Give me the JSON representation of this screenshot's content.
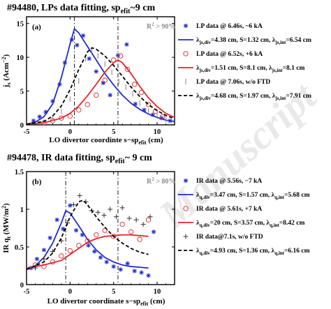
{
  "watermark": "Manuscript",
  "colors": {
    "blue": "#1f2ccc",
    "red": "#e0262a",
    "black": "#000000",
    "grey": "#8c8c8c"
  },
  "chart_data": [
    {
      "id": "a",
      "type": "scatter",
      "title": "#94480,  LPs data fitting, sp",
      "title_sub": "efit",
      "title_tail": "~9 cm",
      "panel_label": "(a)",
      "annotation": "R",
      "annotation_sup": "2",
      "annotation_tail": " > 90%",
      "xlabel": "LO divertor coordinte s−sp",
      "xlabel_sub": "efit",
      "xlabel_tail": " (cm)",
      "ylabel": "j",
      "ylabel_sub": "s",
      "ylabel_tail": " (Acm",
      "ylabel_sup": "−2",
      "ylabel_end": ")",
      "xlim": [
        -5,
        12
      ],
      "ylim": [
        0,
        16
      ],
      "xticks": [
        -5,
        0,
        5,
        10
      ],
      "yticks": [
        0,
        5,
        10,
        15
      ],
      "vlines": [
        0.5,
        5.5
      ],
      "grid": false,
      "legend_position": "right",
      "series": [
        {
          "name": "LP data @ 6.46s, ~6 kA",
          "kind": "marker",
          "marker": "star",
          "color": "#1f2ccc",
          "x": [
            -4.2,
            -3.5,
            -2.8,
            -2.0,
            -1.2,
            -0.6,
            0.2,
            0.8,
            1.5,
            2.2,
            3.0,
            3.8,
            4.6,
            5.5,
            6.5,
            7.5,
            8.5,
            9.5,
            10.5,
            11.5
          ],
          "y": [
            0.6,
            1.2,
            1.9,
            3.5,
            6.0,
            9.2,
            12.6,
            11.8,
            13.2,
            9.8,
            7.9,
            6.2,
            4.4,
            10.3,
            11.9,
            3.1,
            2.2,
            1.5,
            1.0,
            0.6
          ]
        },
        {
          "name": "fit",
          "label_parts": [
            "λ",
            "js,div",
            "=4.38 cm, S=1.32 cm, λ",
            "js,int",
            "=6.54 cm"
          ],
          "kind": "line",
          "color": "#1f2ccc",
          "dash": false,
          "x": [
            -5,
            -4,
            -3,
            -2,
            -1,
            0,
            0.5,
            1,
            1.5,
            2,
            3,
            4,
            5,
            6,
            7,
            8,
            9,
            10,
            11,
            12
          ],
          "y": [
            0.1,
            0.4,
            1.2,
            3.1,
            7.0,
            12.0,
            14.2,
            13.6,
            12.6,
            11.6,
            9.6,
            7.6,
            5.9,
            4.4,
            3.2,
            2.3,
            1.6,
            1.1,
            0.7,
            0.5
          ]
        },
        {
          "name": "LP data @ 6.52s, +6 kA",
          "kind": "marker",
          "marker": "circle",
          "color": "#e0262a",
          "x": [
            -3.0,
            -2.0,
            -1.0,
            0.0,
            1.0,
            2.0,
            3.0,
            4.0,
            5.0,
            5.8,
            6.6,
            7.4,
            8.2,
            9.0,
            9.8,
            10.6
          ],
          "y": [
            0.3,
            0.6,
            1.0,
            1.3,
            2.2,
            3.0,
            4.4,
            6.6,
            9.6,
            10.2,
            8.2,
            6.0,
            4.8,
            3.0,
            2.0,
            1.2
          ]
        },
        {
          "name": "fit",
          "label_parts": [
            "λ",
            "js,div",
            "=1.51 cm, S=8.1 cm, λ",
            "js,int",
            "=8.1 cm"
          ],
          "kind": "line",
          "color": "#e0262a",
          "dash": false,
          "x": [
            -5,
            -3,
            -1,
            0,
            1,
            2,
            3,
            4,
            5,
            5.5,
            6,
            7,
            8,
            9,
            10,
            11,
            12
          ],
          "y": [
            0.1,
            0.3,
            1.0,
            1.7,
            2.8,
            4.3,
            6.0,
            7.8,
            9.2,
            9.6,
            9.2,
            7.6,
            5.7,
            4.0,
            2.7,
            1.7,
            1.1
          ]
        },
        {
          "name": "LP data @ 7.06s, w/o FTD",
          "kind": "marker",
          "marker": "bar",
          "color": "#8c8c8c",
          "x": [
            -3.0,
            -2.0,
            -1.0,
            0.0,
            1.0,
            1.8,
            2.5,
            3.2,
            4.0,
            4.8,
            5.6,
            6.4,
            7.2,
            8.0,
            9.0,
            10.0,
            11.0
          ],
          "y": [
            0.4,
            1.0,
            2.0,
            3.8,
            6.5,
            9.8,
            11.0,
            10.2,
            9.0,
            7.8,
            6.4,
            5.6,
            4.6,
            3.2,
            2.0,
            1.3,
            0.8
          ]
        },
        {
          "name": "fit",
          "label_parts": [
            "λ",
            "js,div",
            "=4.68 cm, S=1.97 cm, λ",
            "js,int",
            "=7.91 cm"
          ],
          "kind": "line",
          "color": "#000000",
          "dash": true,
          "x": [
            -5,
            -3,
            -2,
            -1,
            0,
            1,
            2,
            2.5,
            3,
            4,
            5,
            6,
            7,
            8,
            9,
            10,
            11,
            12
          ],
          "y": [
            0.1,
            0.5,
            1.3,
            2.8,
            5.2,
            8.2,
            10.8,
            11.4,
            11.2,
            10.2,
            8.8,
            7.2,
            5.6,
            4.2,
            3.0,
            2.1,
            1.4,
            0.9
          ]
        }
      ]
    },
    {
      "id": "b",
      "type": "scatter",
      "title": "#94478, IR data fitting, sp",
      "title_sub": "efit",
      "title_tail": "~ 9 cm",
      "panel_label": "(b)",
      "annotation": "R",
      "annotation_sup": "2",
      "annotation_tail": " > 80%",
      "xlabel": "LO divertor coordinate s−sp",
      "xlabel_sub": "efit",
      "xlabel_tail": " (cm)",
      "ylabel": "IR q",
      "ylabel_sub": "t",
      "ylabel_tail": " (MW/m",
      "ylabel_sup": "2",
      "ylabel_end": ")",
      "xlim": [
        -5,
        12
      ],
      "ylim": [
        0,
        1.5
      ],
      "xticks": [
        -5,
        0,
        5,
        10
      ],
      "yticks": [
        0,
        0.5,
        1,
        1.5
      ],
      "vlines": [
        -0.5,
        5.5
      ],
      "grid": false,
      "legend_position": "right",
      "series": [
        {
          "name": "IR data @ 5.56s, −7 kA",
          "kind": "marker",
          "marker": "star",
          "color": "#1f2ccc",
          "x": [
            -4.5,
            -3.8,
            -3.0,
            -2.3,
            -1.5,
            -0.8,
            0.0,
            0.7,
            1.4,
            2.1,
            2.8,
            3.5,
            4.2,
            5.0,
            5.8,
            6.6,
            7.4,
            8.2,
            9.0,
            9.6
          ],
          "y": [
            0.22,
            0.34,
            0.46,
            0.62,
            0.86,
            0.74,
            1.05,
            0.72,
            0.66,
            0.52,
            0.44,
            0.36,
            0.3,
            0.24,
            0.2,
            0.28,
            0.18,
            0.16,
            0.12,
            0.7
          ]
        },
        {
          "name": "fit",
          "label_parts": [
            "λ",
            "q,div",
            "=3.47 cm, S=1.57 cm, λ",
            "q,int",
            "=5.68 cm"
          ],
          "kind": "line",
          "color": "#1f2ccc",
          "dash": false,
          "x": [
            -5,
            -4,
            -3,
            -2,
            -1,
            -0.5,
            0,
            1,
            2,
            3,
            4,
            5,
            6,
            7,
            8,
            9
          ],
          "y": [
            0.2,
            0.25,
            0.36,
            0.55,
            0.82,
            0.98,
            0.95,
            0.78,
            0.6,
            0.46,
            0.36,
            0.3,
            0.26,
            0.24,
            0.23,
            0.22
          ]
        },
        {
          "name": "IR data @ 5.61s, +7 kA",
          "kind": "marker",
          "marker": "circle",
          "color": "#e0262a",
          "x": [
            -4.0,
            -3.0,
            -2.0,
            -1.0,
            0.0,
            1.0,
            2.0,
            3.0,
            4.0,
            5.0,
            6.0,
            7.0,
            8.0,
            9.0
          ],
          "y": [
            0.26,
            0.24,
            0.3,
            0.38,
            0.45,
            0.52,
            0.58,
            0.66,
            0.72,
            0.64,
            0.8,
            0.7,
            0.6,
            0.86
          ]
        },
        {
          "name": "fit",
          "label_parts": [
            "λ",
            "q,div",
            "=20 cm, S=3.57 cm, λ",
            "q,int",
            "=8.42 cm"
          ],
          "kind": "line",
          "color": "#e0262a",
          "dash": false,
          "x": [
            -5,
            -3,
            -1,
            0,
            1,
            2,
            3,
            4,
            5,
            6,
            7,
            8,
            9
          ],
          "y": [
            0.22,
            0.26,
            0.32,
            0.4,
            0.48,
            0.56,
            0.61,
            0.64,
            0.65,
            0.66,
            0.66,
            0.65,
            0.64
          ]
        },
        {
          "name": "IR data@7.1s, w/o FTD",
          "kind": "marker",
          "marker": "plus",
          "color": "#333333",
          "x": [
            -4.0,
            -3.0,
            -2.0,
            -1.0,
            -0.3,
            0.4,
            1.1,
            1.8,
            2.5,
            3.2,
            3.9,
            4.6,
            5.3,
            6.0,
            6.8,
            7.6,
            8.4,
            9.2
          ],
          "y": [
            0.22,
            0.34,
            0.44,
            0.58,
            0.82,
            1.06,
            1.18,
            1.1,
            0.98,
            0.96,
            0.92,
            1.0,
            0.9,
            1.02,
            0.88,
            0.86,
            0.8,
            0.9
          ]
        },
        {
          "name": "fit",
          "label_parts": [
            "λ",
            "q,div",
            "=4.93 cm, S=1.36 cm, λ",
            "q,int",
            "=6.16 cm"
          ],
          "kind": "line",
          "color": "#000000",
          "dash": true,
          "x": [
            -5,
            -3,
            -2,
            -1,
            0,
            1,
            1.5,
            2,
            3,
            4,
            5,
            6,
            7,
            8,
            9
          ],
          "y": [
            0.2,
            0.3,
            0.42,
            0.62,
            0.9,
            1.1,
            1.12,
            1.06,
            0.9,
            0.76,
            0.64,
            0.55,
            0.48,
            0.43,
            0.4
          ]
        }
      ]
    }
  ]
}
